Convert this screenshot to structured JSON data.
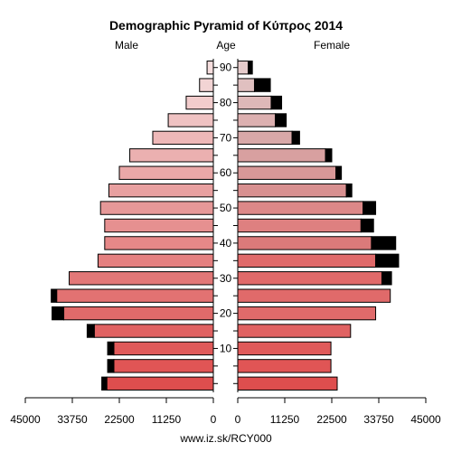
{
  "chart_data": {
    "type": "bar",
    "title": "Demographic Pyramid of Κύπρος 2014",
    "left_header": "Male",
    "center_header": "Age",
    "right_header": "Female",
    "footer": "www.iz.sk/RCY000",
    "xlim": [
      0,
      45000
    ],
    "x_ticks": [
      45000,
      33750,
      22500,
      11250,
      0
    ],
    "age_ticks": [
      10,
      20,
      30,
      40,
      50,
      60,
      70,
      80,
      90
    ],
    "age_groups": [
      "0-4",
      "5-9",
      "10-14",
      "15-19",
      "20-24",
      "25-29",
      "30-34",
      "35-39",
      "40-44",
      "45-49",
      "50-54",
      "55-59",
      "60-64",
      "65-69",
      "70-74",
      "75-79",
      "80-84",
      "85-89",
      "90+"
    ],
    "series": [
      {
        "name": "Male",
        "values": [
          25500,
          23800,
          23800,
          28500,
          35800,
          37500,
          34500,
          27600,
          26000,
          26000,
          27000,
          25000,
          22500,
          20000,
          14500,
          10800,
          6500,
          3300,
          1500
        ],
        "excess": [
          1200,
          1500,
          1500,
          1700,
          2800,
          1300,
          0,
          0,
          0,
          0,
          0,
          0,
          0,
          0,
          0,
          0,
          0,
          0,
          0
        ],
        "colors": [
          "#de4e4e",
          "#e05555",
          "#e05a5a",
          "#e06262",
          "#e06a6a",
          "#e27272",
          "#e27878",
          "#e48080",
          "#e68888",
          "#e69090",
          "#e69898",
          "#e8a0a0",
          "#eaa8a8",
          "#ebb0b0",
          "#eeb8b8",
          "#efc2c2",
          "#f2cccc",
          "#f2d4d4",
          "#f6dede"
        ]
      },
      {
        "name": "Female",
        "values": [
          23800,
          22300,
          22300,
          27000,
          33000,
          36500,
          34500,
          33000,
          32000,
          29500,
          30000,
          26000,
          23500,
          21000,
          13000,
          9000,
          8000,
          4000,
          2500
        ],
        "excess": [
          0,
          0,
          0,
          0,
          0,
          0,
          2300,
          5500,
          5800,
          3000,
          3000,
          1300,
          1300,
          1500,
          1800,
          2600,
          2500,
          3800,
          1000
        ],
        "colors": [
          "#de4e4e",
          "#e05555",
          "#e05a5a",
          "#e06262",
          "#e06a6a",
          "#e06a6a",
          "#e06a6a",
          "#e06a6a",
          "#db7a7a",
          "#de8080",
          "#dc8888",
          "#d89090",
          "#d89898",
          "#d8a0a0",
          "#d8a8a8",
          "#dcb0b0",
          "#deb8b8",
          "#e0c0c0",
          "#e6cccc"
        ]
      }
    ]
  }
}
